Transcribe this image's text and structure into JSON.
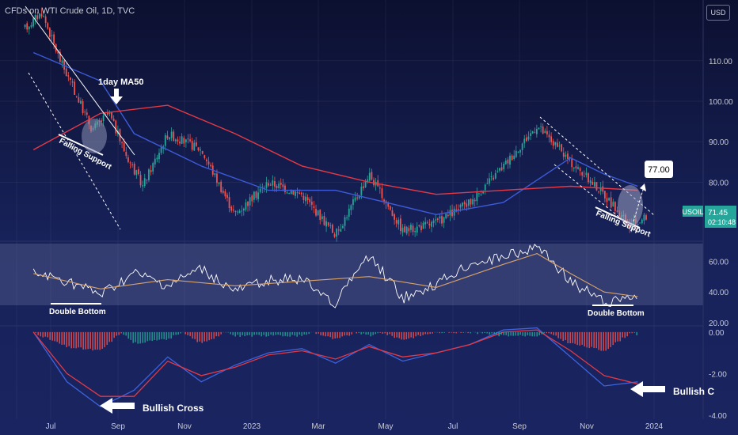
{
  "header": {
    "title": "CFDs on WTI Crude Oil, 1D, TVC",
    "currency_button": "USD"
  },
  "ticker": {
    "symbol": "USOIL",
    "last_price": "71.45",
    "countdown": "02:10:48",
    "target_label": "77.00"
  },
  "annotations": {
    "ma_label": "1day MA50",
    "falling_support_1": "Falling Support",
    "falling_support_2": "Falling Support",
    "double_bottom_1": "Double Bottom",
    "double_bottom_2": "Double Bottom",
    "bullish_cross_1": "Bullish Cross",
    "bullish_cross_2": "Bullish C"
  },
  "colors": {
    "background": "#0f1433",
    "up_candle": "#26a69a",
    "down_candle": "#ef5350",
    "ma_50": "#3d5bd9",
    "ma_200": "#e53945",
    "rsi": "#ffffff",
    "rsi_ma": "#d8a36a",
    "macd": "#3d63dd",
    "macd_signal": "#e53945",
    "price_label_bg": "#26a69a"
  },
  "chart_data": [
    {
      "type": "candlestick",
      "panel": "price",
      "x_ticks": [
        "Jul",
        "Sep",
        "Nov",
        "2023",
        "Mar",
        "May",
        "Jul",
        "Sep",
        "Nov",
        "2024"
      ],
      "y_ticks": [
        "110.00",
        "100.00",
        "90.00",
        "80.00"
      ],
      "ylim": [
        66,
        125
      ],
      "anchors": [
        {
          "x": "Jun 2022",
          "y": 118
        },
        {
          "x": "Jun 2022",
          "y": 122
        },
        {
          "x": "Jul 2022",
          "y": 111
        },
        {
          "x": "Jul 2022",
          "y": 102
        },
        {
          "x": "Aug 2022",
          "y": 93
        },
        {
          "x": "Aug 2022",
          "y": 97
        },
        {
          "x": "Sep 2022",
          "y": 87
        },
        {
          "x": "Sep 2022",
          "y": 79
        },
        {
          "x": "Oct 2022",
          "y": 92
        },
        {
          "x": "Nov 2022",
          "y": 88
        },
        {
          "x": "Dec 2022",
          "y": 72
        },
        {
          "x": "Jan 2023",
          "y": 80
        },
        {
          "x": "Feb 2023",
          "y": 77
        },
        {
          "x": "Mar 2023",
          "y": 67
        },
        {
          "x": "Apr 2023",
          "y": 82
        },
        {
          "x": "May 2023",
          "y": 68
        },
        {
          "x": "Jun 2023",
          "y": 70
        },
        {
          "x": "Jul 2023",
          "y": 75
        },
        {
          "x": "Aug 2023",
          "y": 84
        },
        {
          "x": "Sep 2023",
          "y": 94
        },
        {
          "x": "Oct 2023",
          "y": 85
        },
        {
          "x": "Nov 2023",
          "y": 77
        },
        {
          "x": "Dec 2023",
          "y": 69
        },
        {
          "x": "Dec 2023",
          "y": 71.45
        }
      ],
      "series": [
        {
          "name": "1day MA50",
          "points": [
            {
              "x": "Jun 2022",
              "y": 112
            },
            {
              "x": "Aug 2022",
              "y": 105
            },
            {
              "x": "Sep 2022",
              "y": 92
            },
            {
              "x": "Nov 2022",
              "y": 84
            },
            {
              "x": "Jan 2023",
              "y": 78
            },
            {
              "x": "Mar 2023",
              "y": 78
            },
            {
              "x": "Apr 2023",
              "y": 76
            },
            {
              "x": "Jun 2023",
              "y": 72
            },
            {
              "x": "Aug 2023",
              "y": 75
            },
            {
              "x": "Oct 2023",
              "y": 86
            },
            {
              "x": "Nov 2023",
              "y": 82
            },
            {
              "x": "Dec 2023",
              "y": 79
            }
          ]
        },
        {
          "points": [
            {
              "x": "Jun 2022",
              "y": 88
            },
            {
              "x": "Aug 2022",
              "y": 97
            },
            {
              "x": "Oct 2022",
              "y": 99
            },
            {
              "x": "Dec 2022",
              "y": 92
            },
            {
              "x": "Feb 2023",
              "y": 84
            },
            {
              "x": "Apr 2023",
              "y": 80
            },
            {
              "x": "Jun 2023",
              "y": 77
            },
            {
              "x": "Aug 2023",
              "y": 78
            },
            {
              "x": "Oct 2023",
              "y": 79
            },
            {
              "x": "Dec 2023",
              "y": 78
            }
          ]
        }
      ],
      "target": 77.0,
      "last_price": 71.45
    },
    {
      "type": "line",
      "panel": "rsi",
      "y_ticks": [
        "60.00",
        "40.00",
        "20.00"
      ],
      "ylim": [
        18,
        73
      ],
      "series": [
        {
          "points": [
            {
              "x": "Jun 2022",
              "y": 52
            },
            {
              "x": "Jul 2022",
              "y": 47
            },
            {
              "x": "Aug 2022",
              "y": 38
            },
            {
              "x": "Sep 2022",
              "y": 52
            },
            {
              "x": "Oct 2022",
              "y": 44
            },
            {
              "x": "Nov 2022",
              "y": 55
            },
            {
              "x": "Dec 2022",
              "y": 40
            },
            {
              "x": "Jan 2023",
              "y": 48
            },
            {
              "x": "Feb 2023",
              "y": 48
            },
            {
              "x": "Mar 2023",
              "y": 33
            },
            {
              "x": "Apr 2023",
              "y": 64
            },
            {
              "x": "May 2023",
              "y": 36
            },
            {
              "x": "Jun 2023",
              "y": 45
            },
            {
              "x": "Jul 2023",
              "y": 58
            },
            {
              "x": "Aug 2023",
              "y": 63
            },
            {
              "x": "Sep 2023",
              "y": 70
            },
            {
              "x": "Oct 2023",
              "y": 47
            },
            {
              "x": "Nov 2023",
              "y": 33
            },
            {
              "x": "Dec 2023",
              "y": 38
            }
          ]
        },
        {
          "points": [
            {
              "x": "Jun 2022",
              "y": 52
            },
            {
              "x": "Aug 2022",
              "y": 42
            },
            {
              "x": "Oct 2022",
              "y": 48
            },
            {
              "x": "Dec 2022",
              "y": 44
            },
            {
              "x": "Feb 2023",
              "y": 47
            },
            {
              "x": "Apr 2023",
              "y": 50
            },
            {
              "x": "Jun 2023",
              "y": 43
            },
            {
              "x": "Aug 2023",
              "y": 58
            },
            {
              "x": "Sep 2023",
              "y": 65
            },
            {
              "x": "Oct 2023",
              "y": 52
            },
            {
              "x": "Nov 2023",
              "y": 40
            },
            {
              "x": "Dec 2023",
              "y": 37
            }
          ]
        }
      ]
    },
    {
      "type": "line",
      "panel": "macd",
      "y_ticks": [
        "0.00",
        "-2.00",
        "-4.00"
      ],
      "ylim": [
        -4.2,
        0.3
      ],
      "series": [
        {
          "points": [
            {
              "x": "Jun 2022",
              "y": 0.0
            },
            {
              "x": "Jul 2022",
              "y": -2.4
            },
            {
              "x": "Aug 2022",
              "y": -3.6
            },
            {
              "x": "Sep 2022",
              "y": -2.8
            },
            {
              "x": "Oct 2022",
              "y": -1.2
            },
            {
              "x": "Nov 2022",
              "y": -2.4
            },
            {
              "x": "Dec 2022",
              "y": -1.6
            },
            {
              "x": "Jan 2023",
              "y": -1.0
            },
            {
              "x": "Feb 2023",
              "y": -0.8
            },
            {
              "x": "Mar 2023",
              "y": -1.5
            },
            {
              "x": "Apr 2023",
              "y": -0.6
            },
            {
              "x": "May 2023",
              "y": -1.4
            },
            {
              "x": "Jun 2023",
              "y": -1.0
            },
            {
              "x": "Jul 2023",
              "y": -0.6
            },
            {
              "x": "Aug 2023",
              "y": 0.1
            },
            {
              "x": "Sep 2023",
              "y": 0.2
            },
            {
              "x": "Oct 2023",
              "y": -1.2
            },
            {
              "x": "Nov 2023",
              "y": -2.6
            },
            {
              "x": "Dec 2023",
              "y": -2.4
            }
          ]
        },
        {
          "points": [
            {
              "x": "Jun 2022",
              "y": 0.0
            },
            {
              "x": "Jul 2022",
              "y": -2.0
            },
            {
              "x": "Aug 2022",
              "y": -3.1
            },
            {
              "x": "Sep 2022",
              "y": -3.1
            },
            {
              "x": "Oct 2022",
              "y": -1.4
            },
            {
              "x": "Nov 2022",
              "y": -2.1
            },
            {
              "x": "Dec 2022",
              "y": -1.7
            },
            {
              "x": "Jan 2023",
              "y": -1.1
            },
            {
              "x": "Feb 2023",
              "y": -0.9
            },
            {
              "x": "Mar 2023",
              "y": -1.3
            },
            {
              "x": "Apr 2023",
              "y": -0.7
            },
            {
              "x": "May 2023",
              "y": -1.2
            },
            {
              "x": "Jun 2023",
              "y": -1.0
            },
            {
              "x": "Jul 2023",
              "y": -0.6
            },
            {
              "x": "Aug 2023",
              "y": 0.0
            },
            {
              "x": "Sep 2023",
              "y": 0.1
            },
            {
              "x": "Oct 2023",
              "y": -0.9
            },
            {
              "x": "Nov 2023",
              "y": -2.1
            },
            {
              "x": "Dec 2023",
              "y": -2.5
            }
          ]
        }
      ]
    }
  ]
}
